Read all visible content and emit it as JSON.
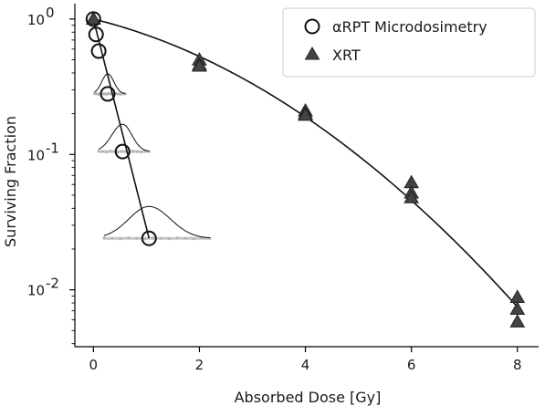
{
  "chart_data": {
    "type": "scatter",
    "title": "",
    "xlabel": "Absorbed Dose [Gy]",
    "ylabel": "Surviving Fraction",
    "xlim": [
      -0.35,
      8.4
    ],
    "ylim": [
      0.0038,
      1.3
    ],
    "yscale": "log",
    "x_ticks": [
      0,
      2,
      4,
      6,
      8
    ],
    "x_tick_labels": [
      "0",
      "2",
      "4",
      "6",
      "8"
    ],
    "y_ticks": [
      1,
      0.1,
      0.01
    ],
    "y_tick_labels": [
      {
        "base": "10",
        "exp": "0"
      },
      {
        "base": "10",
        "exp": "-1"
      },
      {
        "base": "10",
        "exp": "-2"
      }
    ],
    "grid": false,
    "legend_position": "top-right",
    "series": [
      {
        "name": "αRPT Microdosimetry",
        "marker": "open-circle",
        "color": "#111111",
        "x": [
          0.0,
          0.05,
          0.1,
          0.27,
          0.55,
          1.05
        ],
        "y": [
          1.0,
          0.77,
          0.58,
          0.28,
          0.105,
          0.024
        ],
        "fit_line": {
          "x": [
            0.0,
            1.05
          ],
          "y": [
            1.0,
            0.024
          ]
        }
      },
      {
        "name": "XRT",
        "marker": "filled-triangle",
        "color": "#444444",
        "x": [
          0,
          0,
          2,
          2,
          2,
          4,
          4,
          4,
          6,
          6,
          6,
          8,
          8,
          8
        ],
        "y": [
          1.0,
          1.0,
          0.5,
          0.46,
          0.45,
          0.21,
          0.2,
          0.195,
          0.062,
          0.052,
          0.048,
          0.0088,
          0.0072,
          0.0058
        ],
        "fit_curve": {
          "model": "linear-quadratic",
          "alpha": 0.22,
          "beta": 0.049
        }
      }
    ],
    "dose_distributions": [
      {
        "mean_dose": 0.27,
        "surviving_fraction": 0.28,
        "range": [
          0.02,
          0.6
        ]
      },
      {
        "mean_dose": 0.55,
        "surviving_fraction": 0.105,
        "range": [
          0.1,
          1.05
        ]
      },
      {
        "mean_dose": 1.05,
        "surviving_fraction": 0.024,
        "range": [
          0.2,
          2.2
        ]
      }
    ]
  }
}
